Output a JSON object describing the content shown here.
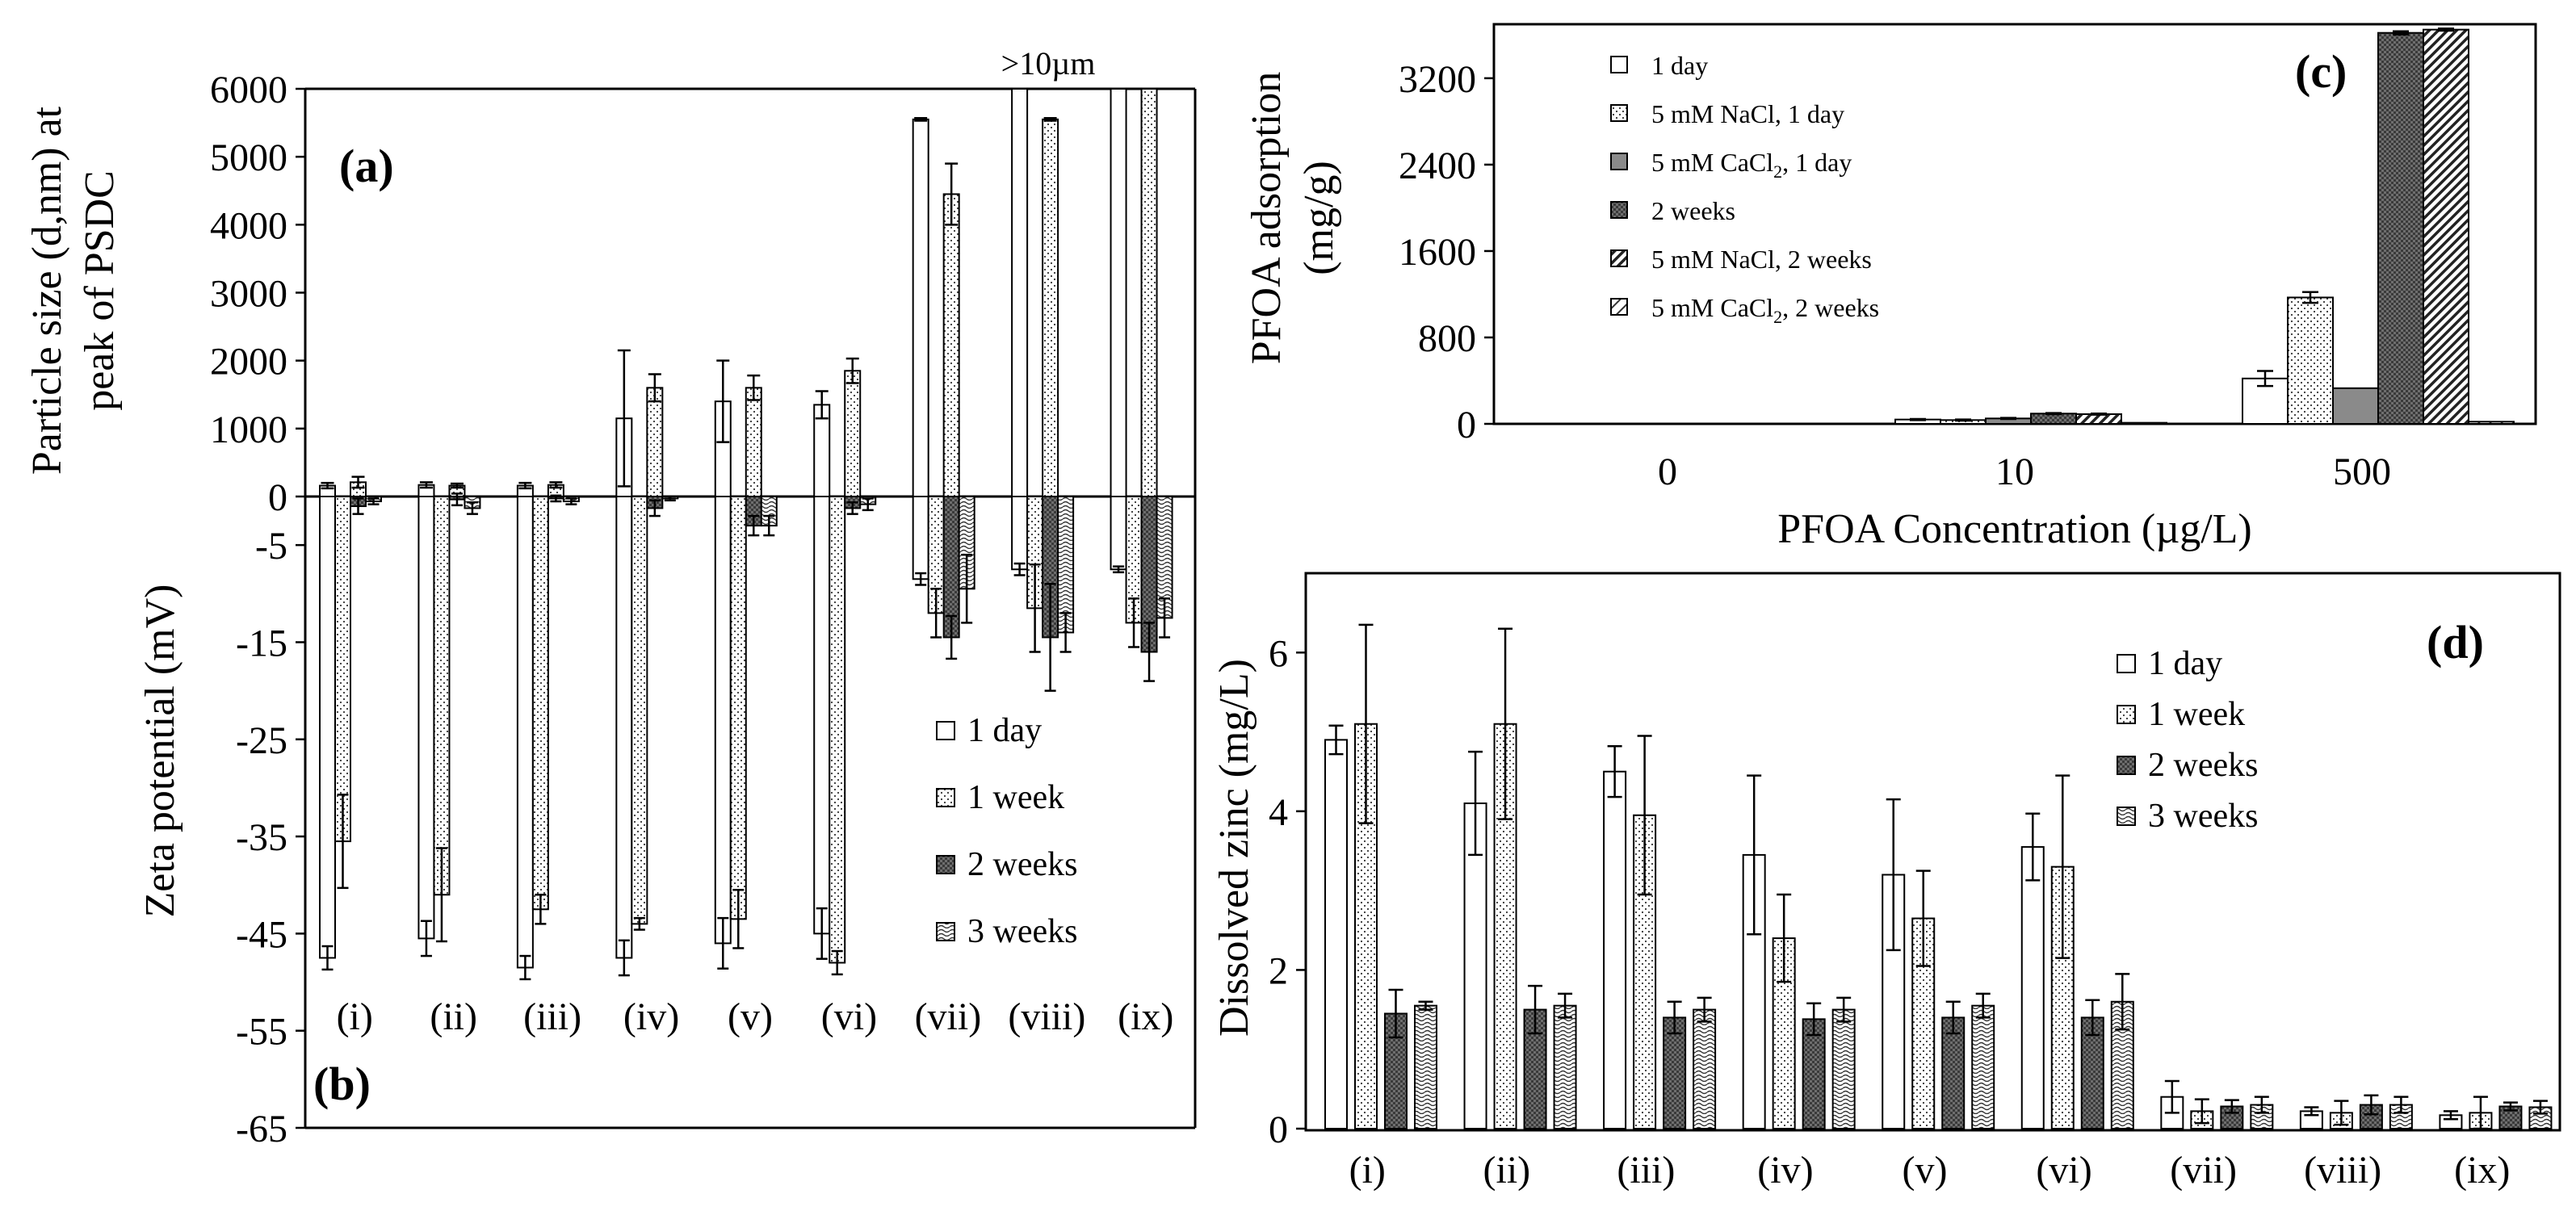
{
  "chart_data": [
    {
      "panel": "(a)",
      "type": "bar",
      "ylabel": "Particle size (d,nm) at peak of PSDC",
      "ylim": [
        0,
        6000
      ],
      "ticks": [
        "6000",
        "5000",
        "4000",
        "3000",
        "2000",
        "1000",
        "0"
      ],
      "categories": [
        "(i)",
        "(ii)",
        "(iii)",
        "(iv)",
        "(v)",
        "(vi)",
        "(vii)",
        "(viii)",
        "(ix)"
      ],
      "annotation": ">10µm",
      "series": [
        {
          "name": "1 day",
          "values": [
            160,
            170,
            160,
            1150,
            1400,
            1350,
            5550,
            6000,
            6000
          ],
          "errors": [
            40,
            40,
            40,
            1000,
            600,
            200,
            20,
            0,
            0
          ]
        },
        {
          "name": "1 week",
          "values": [
            210,
            160,
            170,
            1600,
            1600,
            1850,
            4450,
            5550,
            6000
          ],
          "errors": [
            80,
            30,
            40,
            200,
            180,
            180,
            450,
            20,
            0
          ]
        }
      ]
    },
    {
      "panel": "(b)",
      "type": "bar",
      "ylabel": "Zeta potential (mV)",
      "ylim": [
        -65,
        0
      ],
      "ticks": [
        "-5",
        "-15",
        "-25",
        "-35",
        "-45",
        "-55",
        "-65"
      ],
      "categories": [
        "(i)",
        "(ii)",
        "(iii)",
        "(iv)",
        "(v)",
        "(vi)",
        "(vii)",
        "(viii)",
        "(ix)"
      ],
      "legend": [
        "1 day",
        "1 week",
        "2 weeks",
        "3 weeks"
      ],
      "series": [
        {
          "name": "1 day",
          "values": [
            -47.5,
            -45.5,
            -48.5,
            -47.5,
            -46,
            -45,
            -8.5,
            -7.5,
            -7.5
          ],
          "errors": [
            1.2,
            1.8,
            1.2,
            1.8,
            2.6,
            2.6,
            0.6,
            0.6,
            0.3
          ]
        },
        {
          "name": "1 week",
          "values": [
            -35.5,
            -41,
            -42.5,
            -44,
            -43.5,
            -48,
            -12,
            -11.5,
            -13
          ],
          "errors": [
            4.8,
            4.8,
            1.5,
            0.6,
            3,
            1.2,
            2.5,
            4.5,
            2.5
          ]
        },
        {
          "name": "2 weeks",
          "values": [
            -1,
            -0.3,
            -0.2,
            -1.2,
            -3,
            -1.2,
            -14.5,
            -14.5,
            -16
          ],
          "errors": [
            0.8,
            0.6,
            0.3,
            0.8,
            1,
            0.6,
            2.2,
            5.5,
            3
          ]
        },
        {
          "name": "3 weeks",
          "values": [
            -0.5,
            -1.2,
            -0.5,
            -0.2,
            -3,
            -0.8,
            -9.5,
            -14,
            -12.5
          ],
          "errors": [
            0.3,
            0.6,
            0.3,
            0.2,
            1,
            0.6,
            3.5,
            2,
            2
          ]
        }
      ]
    },
    {
      "panel": "(c)",
      "type": "bar",
      "xlabel": "PFOA Concentration (µg/L)",
      "ylabel": "PFOA adsorption",
      "yunit": "(mg/g)",
      "ylim": [
        0,
        3700
      ],
      "ticks": [
        "3200",
        "2400",
        "1600",
        "800",
        "0"
      ],
      "categories": [
        "0",
        "10",
        "500"
      ],
      "legend": [
        {
          "label": "1 day"
        },
        {
          "label": "5 mM NaCl, 1 day"
        },
        {
          "label": "5 mM CaCl",
          "sub": "2",
          "tail": ", 1 day"
        },
        {
          "label": "2 weeks"
        },
        {
          "label": "5 mM NaCl, 2 weeks"
        },
        {
          "label": "5 mM CaCl",
          "sub": "2",
          "tail": ", 2 weeks"
        }
      ],
      "series": [
        {
          "name": "1 day",
          "values": [
            0,
            40,
            420
          ],
          "errors": [
            0,
            5,
            70
          ]
        },
        {
          "name": "5 mM NaCl, 1 day",
          "values": [
            0,
            35,
            1170
          ],
          "errors": [
            0,
            5,
            50
          ]
        },
        {
          "name": "5 mM CaCl2, 1 day",
          "values": [
            0,
            50,
            330
          ],
          "errors": [
            0,
            5,
            0
          ]
        },
        {
          "name": "2 weeks",
          "values": [
            0,
            95,
            3620
          ],
          "errors": [
            0,
            5,
            15
          ]
        },
        {
          "name": "5 mM NaCl, 2 weeks",
          "values": [
            0,
            90,
            3650
          ],
          "errors": [
            0,
            5,
            10
          ]
        },
        {
          "name": "5 mM CaCl2, 2 weeks",
          "values": [
            0,
            10,
            20
          ],
          "errors": [
            0,
            0,
            0
          ]
        }
      ]
    },
    {
      "panel": "(d)",
      "type": "bar",
      "ylabel": "Dissolved  zinc (mg/L)",
      "ylim": [
        0,
        7
      ],
      "ticks": [
        "6",
        "4",
        "2",
        "0"
      ],
      "categories": [
        "(i)",
        "(ii)",
        "(iii)",
        "(iv)",
        "(v)",
        "(vi)",
        "(vii)",
        "(viii)",
        "(ix)"
      ],
      "legend": [
        "1 day",
        "1 week",
        "2 weeks",
        "3 weeks"
      ],
      "series": [
        {
          "name": "1 day",
          "values": [
            4.9,
            4.1,
            4.5,
            3.45,
            3.2,
            3.55,
            0.4,
            0.22,
            0.17
          ],
          "errors": [
            0.18,
            0.65,
            0.32,
            1.0,
            0.95,
            0.42,
            0.2,
            0.05,
            0.05
          ]
        },
        {
          "name": "1 week",
          "values": [
            5.1,
            5.1,
            3.95,
            2.4,
            2.65,
            3.3,
            0.22,
            0.2,
            0.2
          ],
          "errors": [
            1.25,
            1.2,
            1.0,
            0.55,
            0.6,
            1.15,
            0.15,
            0.15,
            0.2
          ]
        },
        {
          "name": "2 weeks",
          "values": [
            1.45,
            1.5,
            1.4,
            1.38,
            1.4,
            1.4,
            0.28,
            0.3,
            0.28
          ],
          "errors": [
            0.3,
            0.3,
            0.2,
            0.2,
            0.2,
            0.22,
            0.08,
            0.12,
            0.05
          ]
        },
        {
          "name": "3 weeks",
          "values": [
            1.55,
            1.55,
            1.5,
            1.5,
            1.55,
            1.6,
            0.3,
            0.3,
            0.27
          ],
          "errors": [
            0.05,
            0.15,
            0.15,
            0.15,
            0.15,
            0.35,
            0.1,
            0.1,
            0.08
          ]
        }
      ]
    }
  ],
  "labels": {
    "panel_a": "(a)",
    "panel_b": "(b)",
    "panel_c": "(c)",
    "panel_d": "(d)",
    "ylabel_a_line1": "Particle size (d,nm) at",
    "ylabel_a_line2": "peak of PSDC"
  },
  "colors": {
    "ink": "#000000",
    "dark": "#555555",
    "background": "#ffffff"
  }
}
